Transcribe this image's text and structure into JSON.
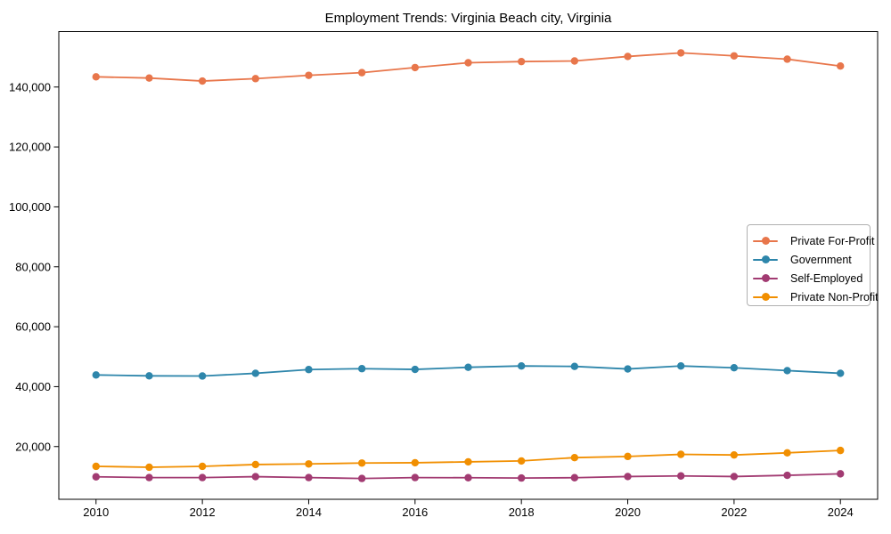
{
  "figure": {
    "background": "#ffffff"
  },
  "chart_data": {
    "type": "line",
    "title": "Employment Trends: Virginia Beach city, Virginia",
    "x": [
      2010,
      2011,
      2012,
      2013,
      2014,
      2015,
      2016,
      2017,
      2018,
      2019,
      2020,
      2021,
      2022,
      2023,
      2024
    ],
    "series": [
      {
        "name": "Private For-Profit",
        "color": "#E8764B",
        "values": [
          143400,
          143000,
          142000,
          142800,
          143900,
          144800,
          146500,
          148100,
          148500,
          148700,
          150200,
          151400,
          150400,
          149300,
          147000
        ]
      },
      {
        "name": "Government",
        "color": "#2E86AB",
        "values": [
          43900,
          43600,
          43550,
          44450,
          45700,
          46000,
          45750,
          46450,
          46900,
          46750,
          45900,
          46900,
          46300,
          45350,
          44450
        ]
      },
      {
        "name": "Self-Employed",
        "color": "#A23B72",
        "values": [
          9900,
          9650,
          9650,
          9950,
          9650,
          9350,
          9650,
          9600,
          9500,
          9600,
          10000,
          10200,
          10000,
          10400,
          10900
        ]
      },
      {
        "name": "Private Non-Profit",
        "color": "#F18F01",
        "values": [
          13400,
          13100,
          13400,
          14000,
          14200,
          14500,
          14600,
          14900,
          15200,
          16300,
          16700,
          17400,
          17200,
          17900,
          18700
        ]
      }
    ],
    "xlabel": "",
    "ylabel": "",
    "xticks": [
      2010,
      2012,
      2014,
      2016,
      2018,
      2020,
      2022,
      2024
    ],
    "yticks": [
      20000,
      40000,
      60000,
      80000,
      100000,
      120000,
      140000
    ],
    "ytick_labels": [
      "20,000",
      "40,000",
      "60,000",
      "80,000",
      "100,000",
      "120,000",
      "140,000"
    ],
    "xlim": [
      2009.3,
      2024.7
    ],
    "ylim": [
      2400,
      158500
    ],
    "grid": false,
    "legend": {
      "position": "center-right",
      "border": true,
      "marker": "circle-on-line"
    }
  }
}
